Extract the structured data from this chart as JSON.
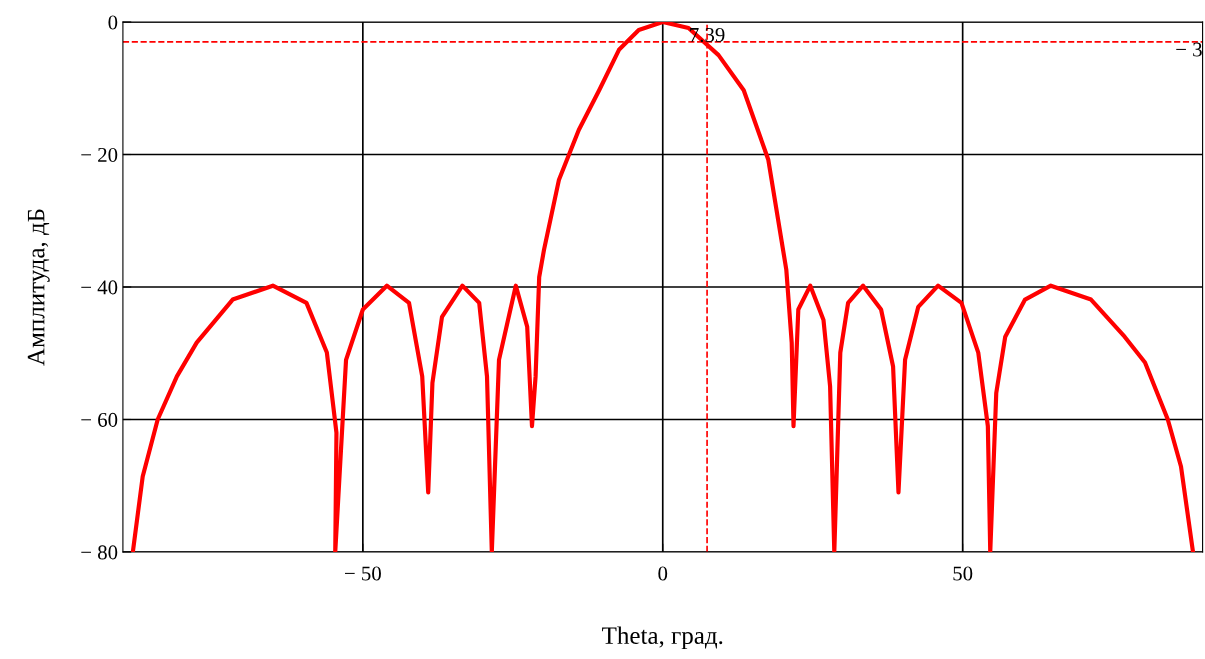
{
  "chart_data": {
    "type": "line",
    "xlabel": "Theta, град.",
    "ylabel": "Амплитуда, дБ",
    "series": [
      {
        "color": "#ff0000",
        "x": [
          -88.3,
          -86.7,
          -84.2,
          -81,
          -77.7,
          -71.7,
          -65,
          -59.4,
          -56,
          -54.4,
          -54.6,
          -52.8,
          -50,
          -46,
          -42.3,
          -40.1,
          -39.1,
          -38.4,
          -36.8,
          -33.4,
          -30.6,
          -29.3,
          -28.5,
          -27.3,
          -24.5,
          -22.6,
          -21.8,
          -21.2,
          -20.6,
          -19.8,
          -17.3,
          -14,
          -10.6,
          -7.3,
          -4,
          0,
          4.3,
          9.3,
          13.5,
          17.6,
          20.6,
          21.5,
          21.8,
          22.6,
          24.6,
          26.8,
          27.9,
          28.6,
          29.6,
          30.9,
          33.4,
          36.4,
          38.4,
          39.3,
          40.4,
          42.6,
          45.9,
          49.8,
          52.6,
          54.2,
          54.6,
          55.6,
          57.1,
          60.4,
          64.7,
          71.4,
          77,
          80.4,
          84.2,
          86.4,
          88.4
        ],
        "values": [
          -79.7,
          -68.6,
          -60,
          -53.5,
          -48.4,
          -41.9,
          -39.8,
          -42.4,
          -49.9,
          -62,
          -80,
          -51,
          -43.4,
          -39.8,
          -42.4,
          -53.5,
          -71,
          -54.5,
          -44.5,
          -39.8,
          -42.4,
          -53.5,
          -80,
          -51,
          -39.8,
          -46,
          -61,
          -53.5,
          -38.5,
          -34.4,
          -23.8,
          -16.3,
          -10.3,
          -4.2,
          -1.2,
          0,
          -0.9,
          -5,
          -10.3,
          -20.8,
          -37.4,
          -48.4,
          -61,
          -43.4,
          -39.8,
          -45,
          -55,
          -80,
          -49.9,
          -42.4,
          -39.8,
          -43.4,
          -52,
          -71,
          -51,
          -43,
          -39.8,
          -42.4,
          -49.9,
          -61,
          -80,
          -56,
          -47.5,
          -41.9,
          -39.8,
          -41.9,
          -47.5,
          -51.4,
          -60,
          -67.1,
          -80
        ]
      }
    ],
    "xlim": [
      -90,
      90
    ],
    "ylim": [
      -80,
      0
    ],
    "xticks": [
      {
        "value": -50,
        "label": "− 50"
      },
      0,
      50
    ],
    "yticks": [
      {
        "value": -80,
        "label": "− 80"
      },
      {
        "value": -60,
        "label": "− 60"
      },
      {
        "value": -40,
        "label": "− 40"
      },
      {
        "value": -20,
        "label": "− 20"
      },
      0
    ],
    "grid": true,
    "marker": "none",
    "line_style": "solid",
    "ref_lines": [
      {
        "axis": "y",
        "value": -3,
        "label": "− 3",
        "color": "#ff0000",
        "line_style": "dashed"
      },
      {
        "axis": "x",
        "value": 7.39,
        "label": "7.39",
        "color": "#ff0000",
        "line_style": "dashed"
      }
    ]
  }
}
